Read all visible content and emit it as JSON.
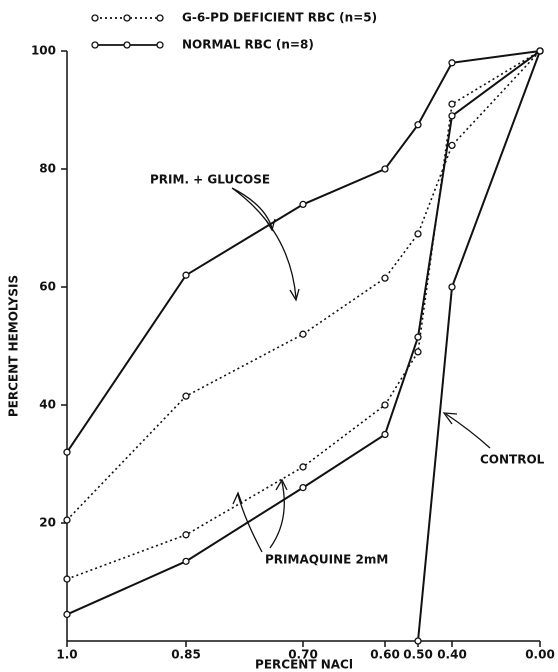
{
  "chart_data": {
    "type": "line",
    "xlabel": "PERCENT NACl",
    "ylabel": "PERCENT HEMOLYSIS",
    "categories": [
      "1.0",
      "0.85",
      "0.70",
      "0.60",
      "0.50",
      "0.40",
      "0.00"
    ],
    "ylim": [
      0,
      100
    ],
    "yticks": [
      20,
      40,
      60,
      80,
      100
    ],
    "color": "#111111",
    "legend": [
      {
        "name": "G-6-PD DEFICIENT RBC (n=5)",
        "style": "dotted"
      },
      {
        "name": "NORMAL RBC (n=8)",
        "style": "solid"
      }
    ],
    "series": [
      {
        "style": "solid",
        "values": [
          32,
          62,
          74,
          80,
          87.5,
          98,
          100
        ]
      },
      {
        "style": "dotted",
        "values": [
          20.5,
          41.5,
          52,
          61.5,
          69,
          84,
          100
        ]
      },
      {
        "style": "dotted",
        "values": [
          10.5,
          18,
          29.5,
          40,
          49,
          91,
          100
        ]
      },
      {
        "style": "solid",
        "values": [
          4.5,
          13.5,
          26,
          35,
          51.5,
          89,
          100
        ]
      },
      {
        "style": "solid",
        "values": [
          null,
          null,
          null,
          null,
          0,
          60,
          100
        ]
      }
    ],
    "annotations": [
      "PRIM. + GLUCOSE",
      "PRIMAQUINE 2mM",
      "CONTROL"
    ]
  }
}
